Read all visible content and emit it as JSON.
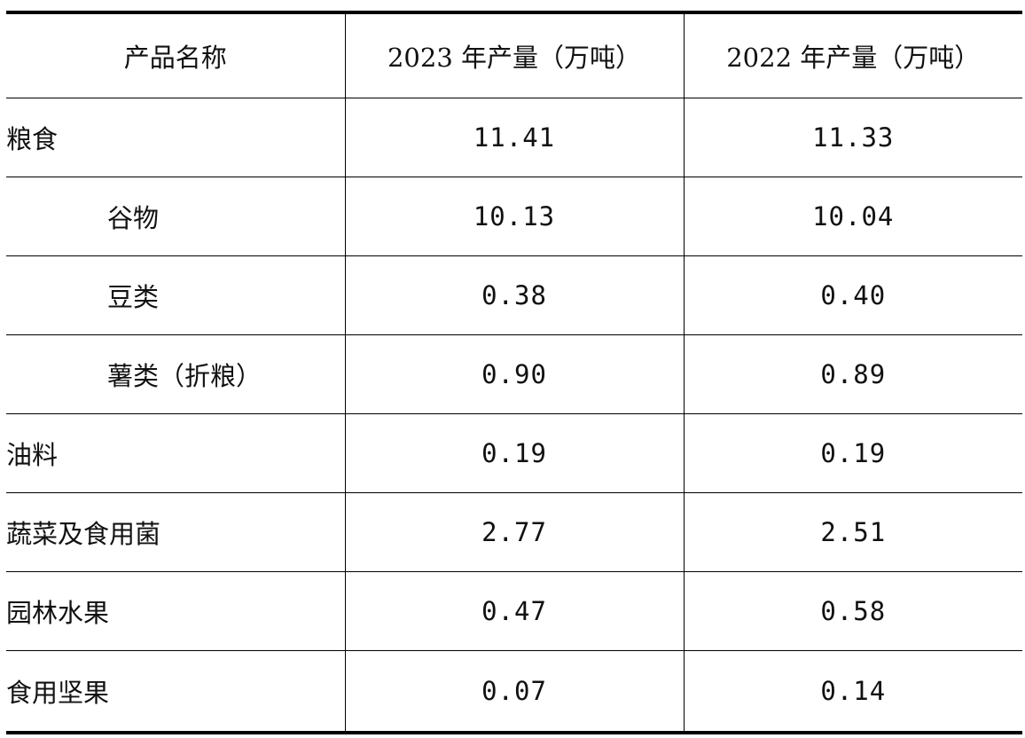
{
  "table": {
    "headers": {
      "name": "产品名称",
      "y2023": "2023 年产量（万吨）",
      "y2022": "2022 年产量（万吨）"
    },
    "rows": [
      {
        "name": "粮食",
        "y2023": "11.41",
        "y2022": "11.33",
        "level": 0
      },
      {
        "name": "谷物",
        "y2023": "10.13",
        "y2022": "10.04",
        "level": 1
      },
      {
        "name": "豆类",
        "y2023": "0.38",
        "y2022": "0.40",
        "level": 1
      },
      {
        "name": "薯类（折粮）",
        "y2023": "0.90",
        "y2022": "0.89",
        "level": 1
      },
      {
        "name": "油料",
        "y2023": "0.19",
        "y2022": "0.19",
        "level": 0
      },
      {
        "name": "蔬菜及食用菌",
        "y2023": "2.77",
        "y2022": "2.51",
        "level": 0
      },
      {
        "name": "园林水果",
        "y2023": "0.47",
        "y2022": "0.58",
        "level": 0
      },
      {
        "name": "食用坚果",
        "y2023": "0.07",
        "y2022": "0.14",
        "level": 0
      }
    ]
  }
}
